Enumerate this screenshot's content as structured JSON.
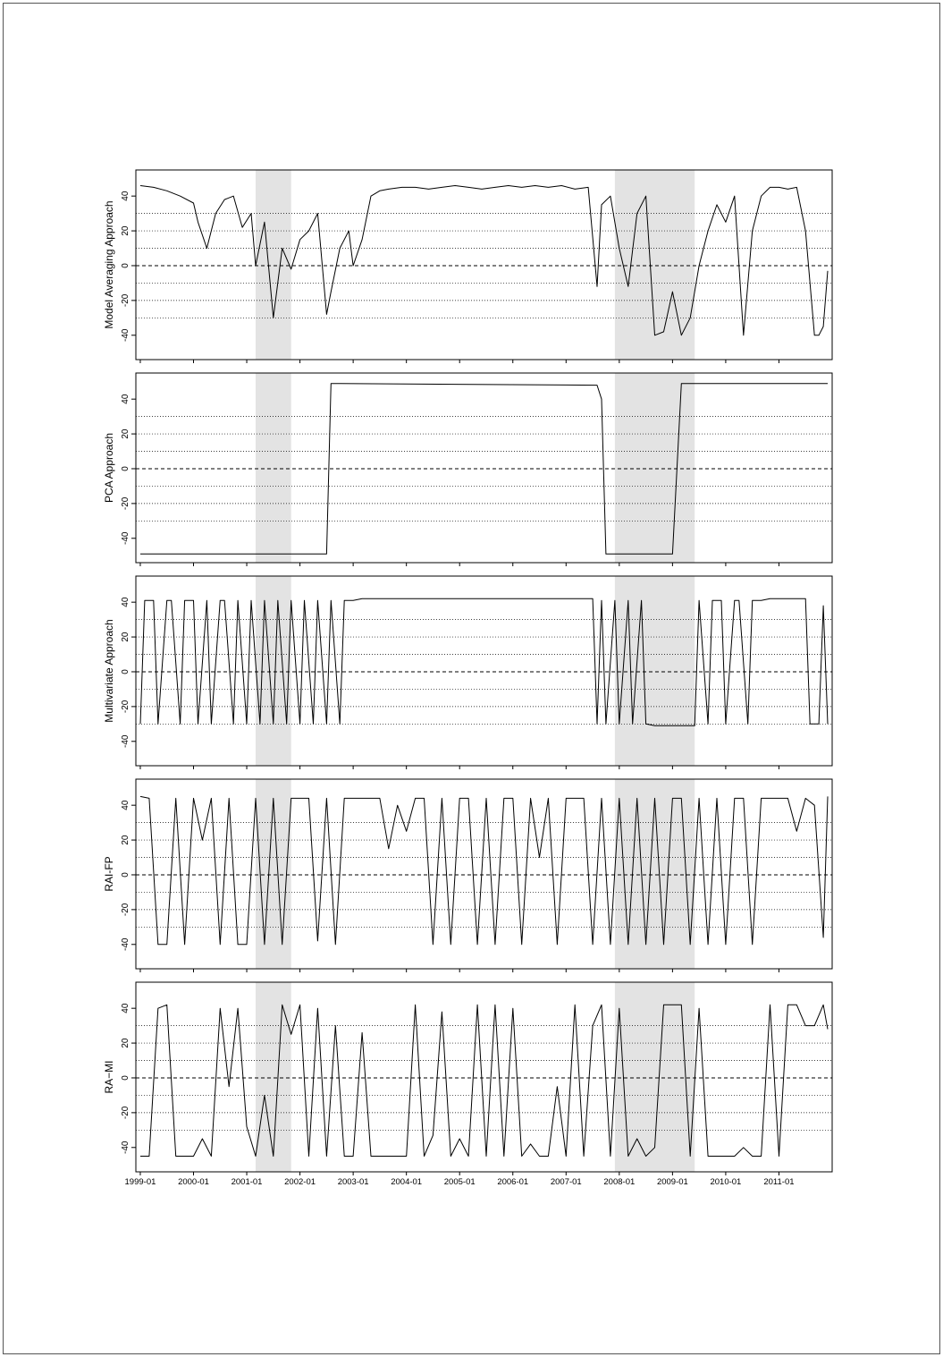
{
  "colors": {
    "line": "#000000",
    "recession_shade": "#e3e3e3",
    "ref_lines": "#000000",
    "background": "#ffffff"
  },
  "chart_data": {
    "type": "line",
    "shared_x_axis": {
      "type": "date",
      "range": [
        "1998-12-01",
        "2012-01-01"
      ],
      "tick_labels": [
        "1999-01",
        "2000-01",
        "2001-01",
        "2002-01",
        "2003-01",
        "2004-01",
        "2005-01",
        "2006-01",
        "2007-01",
        "2008-01",
        "2009-01",
        "2010-01",
        "2011-01"
      ]
    },
    "recession_shading": [
      {
        "start": "2001-03-01",
        "end": "2001-11-01"
      },
      {
        "start": "2007-12-01",
        "end": "2009-06-01"
      }
    ],
    "reference_lines": {
      "dashed": [
        0
      ],
      "dotted": [
        -30,
        -20,
        -10,
        10,
        20,
        30
      ]
    },
    "grid": false,
    "legend": "none",
    "panels": [
      {
        "ylabel": "Model Averaging Approach",
        "ylim": [
          -54,
          55
        ],
        "yticks": [
          -40,
          -20,
          0,
          20,
          40
        ],
        "series": {
          "x": [
            "1999-01",
            "1999-04",
            "1999-07",
            "1999-10",
            "2000-01",
            "2000-02",
            "2000-04",
            "2000-06",
            "2000-08",
            "2000-10",
            "2000-12",
            "2001-02",
            "2001-03",
            "2001-05",
            "2001-07",
            "2001-09",
            "2001-11",
            "2002-01",
            "2002-03",
            "2002-05",
            "2002-07",
            "2002-08",
            "2002-10",
            "2002-12",
            "2003-01",
            "2003-03",
            "2003-05",
            "2003-07",
            "2003-09",
            "2003-12",
            "2004-03",
            "2004-06",
            "2004-09",
            "2004-12",
            "2005-03",
            "2005-06",
            "2005-09",
            "2005-12",
            "2006-03",
            "2006-06",
            "2006-09",
            "2006-12",
            "2007-03",
            "2007-06",
            "2007-08",
            "2007-09",
            "2007-11",
            "2008-01",
            "2008-03",
            "2008-05",
            "2008-07",
            "2008-09",
            "2008-11",
            "2009-01",
            "2009-03",
            "2009-05",
            "2009-07",
            "2009-09",
            "2009-11",
            "2010-01",
            "2010-03",
            "2010-05",
            "2010-07",
            "2010-09",
            "2010-11",
            "2011-01",
            "2011-03",
            "2011-05",
            "2011-07",
            "2011-09",
            "2011-10",
            "2011-11",
            "2011-12"
          ],
          "y": [
            46,
            45,
            43,
            40,
            36,
            25,
            10,
            30,
            38,
            40,
            22,
            30,
            0,
            25,
            -30,
            10,
            -2,
            15,
            20,
            30,
            -28,
            -15,
            10,
            20,
            0,
            15,
            40,
            43,
            44,
            45,
            45,
            44,
            45,
            46,
            45,
            44,
            45,
            46,
            45,
            46,
            45,
            46,
            44,
            45,
            -12,
            35,
            40,
            10,
            -12,
            30,
            40,
            -40,
            -38,
            -15,
            -40,
            -30,
            0,
            20,
            35,
            25,
            40,
            -40,
            20,
            40,
            45,
            45,
            44,
            45,
            20,
            -40,
            -40,
            -35,
            -3
          ]
        }
      },
      {
        "ylabel": "PCA Approach",
        "ylim": [
          -54,
          55
        ],
        "yticks": [
          -40,
          -20,
          0,
          20,
          40
        ],
        "series": {
          "x": [
            "1999-01",
            "2002-07",
            "2002-08",
            "2007-08",
            "2007-09",
            "2007-10",
            "2008-12",
            "2009-01",
            "2009-03",
            "2011-12"
          ],
          "y": [
            -49,
            -49,
            49,
            48,
            40,
            -49,
            -49,
            -49,
            49,
            49
          ]
        }
      },
      {
        "ylabel": "Multivariate Approach",
        "ylim": [
          -54,
          55
        ],
        "yticks": [
          -40,
          -20,
          0,
          20,
          40
        ],
        "series": {
          "x": [
            "1999-01",
            "1999-02",
            "1999-04",
            "1999-05",
            "1999-07",
            "1999-08",
            "1999-10",
            "1999-11",
            "2000-01",
            "2000-02",
            "2000-04",
            "2000-05",
            "2000-07",
            "2000-08",
            "2000-10",
            "2000-11",
            "2001-01",
            "2001-02",
            "2001-04",
            "2001-05",
            "2001-07",
            "2001-08",
            "2001-10",
            "2001-11",
            "2002-01",
            "2002-02",
            "2002-04",
            "2002-05",
            "2002-07",
            "2002-08",
            "2002-10",
            "2002-11",
            "2003-01",
            "2003-03",
            "2004-06",
            "2005-06",
            "2006-06",
            "2007-07",
            "2007-08",
            "2007-09",
            "2007-10",
            "2007-12",
            "2008-01",
            "2008-03",
            "2008-04",
            "2008-06",
            "2008-07",
            "2008-09",
            "2009-01",
            "2009-03",
            "2009-06",
            "2009-07",
            "2009-09",
            "2009-10",
            "2009-12",
            "2010-01",
            "2010-03",
            "2010-04",
            "2010-06",
            "2010-07",
            "2010-09",
            "2010-11",
            "2011-01",
            "2011-03",
            "2011-05",
            "2011-07",
            "2011-08",
            "2011-10",
            "2011-11",
            "2011-12"
          ],
          "y": [
            -30,
            41,
            41,
            -30,
            41,
            41,
            -30,
            41,
            41,
            -30,
            41,
            -30,
            41,
            41,
            -30,
            41,
            -30,
            41,
            -30,
            41,
            -30,
            41,
            -30,
            41,
            -30,
            41,
            -30,
            41,
            -30,
            41,
            -30,
            41,
            41,
            42,
            42,
            42,
            42,
            42,
            -30,
            41,
            -30,
            41,
            -30,
            41,
            -30,
            41,
            -30,
            -31,
            -31,
            -31,
            -31,
            41,
            -30,
            41,
            41,
            -30,
            41,
            41,
            -30,
            41,
            41,
            42,
            42,
            42,
            42,
            42,
            -30,
            -30,
            38,
            -30
          ]
        }
      },
      {
        "ylabel": "RAI-FP",
        "ylim": [
          -54,
          55
        ],
        "yticks": [
          -40,
          -20,
          0,
          20,
          40
        ],
        "series": {
          "x": [
            "1999-01",
            "1999-03",
            "1999-05",
            "1999-07",
            "1999-09",
            "1999-11",
            "2000-01",
            "2000-03",
            "2000-05",
            "2000-07",
            "2000-09",
            "2000-11",
            "2001-01",
            "2001-03",
            "2001-05",
            "2001-07",
            "2001-09",
            "2001-11",
            "2002-01",
            "2002-03",
            "2002-05",
            "2002-07",
            "2002-09",
            "2002-11",
            "2003-01",
            "2003-03",
            "2003-05",
            "2003-07",
            "2003-09",
            "2003-11",
            "2004-01",
            "2004-03",
            "2004-05",
            "2004-07",
            "2004-09",
            "2004-11",
            "2005-01",
            "2005-03",
            "2005-05",
            "2005-07",
            "2005-09",
            "2005-11",
            "2006-01",
            "2006-03",
            "2006-05",
            "2006-07",
            "2006-09",
            "2006-11",
            "2007-01",
            "2007-03",
            "2007-05",
            "2007-07",
            "2007-09",
            "2007-11",
            "2008-01",
            "2008-03",
            "2008-05",
            "2008-07",
            "2008-09",
            "2008-11",
            "2009-01",
            "2009-03",
            "2009-05",
            "2009-07",
            "2009-09",
            "2009-11",
            "2010-01",
            "2010-03",
            "2010-05",
            "2010-07",
            "2010-09",
            "2010-11",
            "2011-01",
            "2011-03",
            "2011-05",
            "2011-07",
            "2011-09",
            "2011-11",
            "2011-12"
          ],
          "y": [
            45,
            44,
            -40,
            -40,
            44,
            -40,
            44,
            20,
            44,
            -40,
            44,
            -40,
            -40,
            44,
            -40,
            44,
            -40,
            44,
            44,
            44,
            -38,
            44,
            -40,
            44,
            44,
            44,
            44,
            44,
            15,
            40,
            25,
            44,
            44,
            -40,
            44,
            -40,
            44,
            44,
            -40,
            44,
            -40,
            44,
            44,
            -40,
            44,
            10,
            44,
            -40,
            44,
            44,
            44,
            -40,
            44,
            -40,
            44,
            -40,
            44,
            -40,
            44,
            -40,
            44,
            44,
            -40,
            44,
            -40,
            44,
            -40,
            44,
            44,
            -40,
            44,
            44,
            44,
            44,
            25,
            44,
            40,
            -36,
            45
          ]
        }
      },
      {
        "ylabel": "RA−MI",
        "ylim": [
          -54,
          55
        ],
        "yticks": [
          -40,
          -20,
          0,
          20,
          40
        ],
        "series": {
          "x": [
            "1999-01",
            "1999-03",
            "1999-05",
            "1999-07",
            "1999-09",
            "1999-11",
            "2000-01",
            "2000-03",
            "2000-05",
            "2000-07",
            "2000-09",
            "2000-11",
            "2001-01",
            "2001-03",
            "2001-05",
            "2001-07",
            "2001-09",
            "2001-11",
            "2002-01",
            "2002-03",
            "2002-05",
            "2002-07",
            "2002-09",
            "2002-11",
            "2003-01",
            "2003-03",
            "2003-05",
            "2003-07",
            "2003-09",
            "2003-11",
            "2004-01",
            "2004-03",
            "2004-05",
            "2004-07",
            "2004-09",
            "2004-11",
            "2005-01",
            "2005-03",
            "2005-05",
            "2005-07",
            "2005-09",
            "2005-11",
            "2006-01",
            "2006-03",
            "2006-05",
            "2006-07",
            "2006-09",
            "2006-11",
            "2007-01",
            "2007-03",
            "2007-05",
            "2007-07",
            "2007-09",
            "2007-11",
            "2008-01",
            "2008-03",
            "2008-05",
            "2008-07",
            "2008-09",
            "2008-11",
            "2009-01",
            "2009-03",
            "2009-05",
            "2009-07",
            "2009-09",
            "2009-11",
            "2010-01",
            "2010-03",
            "2010-05",
            "2010-07",
            "2010-09",
            "2010-11",
            "2011-01",
            "2011-03",
            "2011-05",
            "2011-07",
            "2011-09",
            "2011-11",
            "2011-12"
          ],
          "y": [
            -45,
            -45,
            40,
            42,
            -45,
            -45,
            -45,
            -35,
            -45,
            40,
            -5,
            40,
            -28,
            -45,
            -10,
            -45,
            42,
            25,
            42,
            -45,
            40,
            -45,
            30,
            -45,
            -45,
            26,
            -45,
            -45,
            -45,
            -45,
            -45,
            42,
            -45,
            -33,
            38,
            -45,
            -35,
            -45,
            42,
            -45,
            42,
            -45,
            40,
            -45,
            -38,
            -45,
            -45,
            -5,
            -45,
            42,
            -45,
            30,
            42,
            -45,
            40,
            -45,
            -35,
            -45,
            -40,
            42,
            42,
            42,
            -45,
            40,
            -45,
            -45,
            -45,
            -45,
            -40,
            -45,
            -45,
            42,
            -45,
            42,
            42,
            30,
            30,
            42,
            28
          ]
        }
      }
    ]
  }
}
